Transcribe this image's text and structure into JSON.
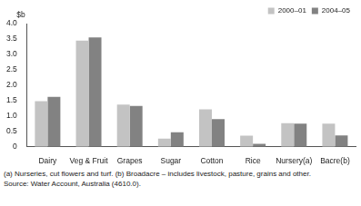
{
  "chart_data": {
    "type": "bar",
    "y_label": "$b",
    "categories": [
      "Dairy",
      "Veg & Fruit",
      "Grapes",
      "Sugar",
      "Cotton",
      "Rice",
      "Nursery(a)",
      "Bacre(b)"
    ],
    "series": [
      {
        "name": "2000–01",
        "color": "#c3c3c3",
        "values": [
          1.48,
          3.45,
          1.37,
          0.27,
          1.22,
          0.36,
          0.77,
          0.75
        ]
      },
      {
        "name": "2004–05",
        "color": "#828282",
        "values": [
          1.62,
          3.55,
          1.33,
          0.47,
          0.9,
          0.1,
          0.75,
          0.37
        ]
      }
    ],
    "ylim": [
      0,
      4
    ],
    "yticks": [
      0,
      0.5,
      {
        "value": 1,
        "label": "1.0"
      },
      1.5,
      {
        "value": 2,
        "label": "2.0"
      },
      2.5,
      {
        "value": 3,
        "label": "3.0"
      },
      3.5,
      {
        "value": 4,
        "label": "4.0"
      }
    ],
    "grid": false,
    "legend": "upper right",
    "annotations": [
      "(a) Nurseries, cut flowers and turf. (b) Broadacre – includes livestock, pasture, grains and other.",
      "Source: Water Account, Australia (4610.0)."
    ]
  }
}
